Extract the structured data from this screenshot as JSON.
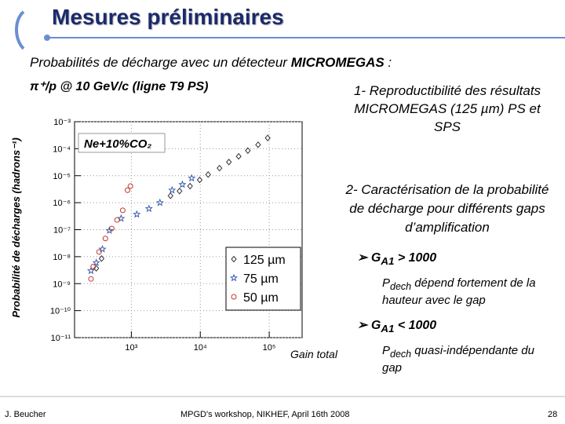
{
  "slide": {
    "title": "Mesures préliminaires",
    "intro": "Probabilités de décharge avec un détecteur",
    "intro_bold": "MICROMEGAS",
    "intro_end": ":",
    "beam": "π⁺/p @ 10 GeV/c (ligne T9 PS)",
    "point1": "1- Reproductibilité des résultats MICROMEGAS (125 µm) PS et SPS",
    "point2": "2- Caractérisation de la probabilité de décharge pour différents gaps d’amplification",
    "case1": {
      "symbol": "G",
      "subscript": "A1",
      "text": "> 1000"
    },
    "case1_note": {
      "symbol": "P",
      "subscript": "dech",
      "text": "dépend fortement de la hauteur avec le gap"
    },
    "case2": {
      "symbol": "G",
      "subscript": "A1",
      "text": "< 1000"
    },
    "case2_note": {
      "symbol": "P",
      "subscript": "dech",
      "text": "quasi-indépendante du gap"
    },
    "author": "J. Beucher",
    "event": "MPGD's workshop, NIKHEF,  April 16th 2008",
    "page": "28"
  },
  "chart_data": {
    "type": "scatter",
    "annotation": "Ne+10%CO₂",
    "x_label": "Gain total",
    "y_label": "Probabilité de décharges (hadrons⁻¹)",
    "xlog": true,
    "ylog": true,
    "grid": true,
    "legend": "lower right",
    "xlim": [
      150,
      300000
    ],
    "ylim": [
      1e-11,
      0.001
    ],
    "xticks": [
      {
        "value": 1000,
        "label": "10³"
      },
      {
        "value": 10000,
        "label": "10⁴"
      },
      {
        "value": 100000,
        "label": "10⁵"
      }
    ],
    "yticks": [
      {
        "value": 0.001,
        "label": "10⁻³"
      },
      {
        "value": 0.0001,
        "label": "10⁻⁴"
      },
      {
        "value": 1e-05,
        "label": "10⁻⁵"
      },
      {
        "value": 1e-06,
        "label": "10⁻⁶"
      },
      {
        "value": 1e-07,
        "label": "10⁻⁷"
      },
      {
        "value": 1e-08,
        "label": "10⁻⁸"
      },
      {
        "value": 1e-09,
        "label": "10⁻⁹"
      },
      {
        "value": 1e-10,
        "label": "10⁻¹⁰"
      },
      {
        "value": 1e-11,
        "label": "10⁻¹¹"
      }
    ],
    "series": [
      {
        "name": "125 µm",
        "color": "#333333",
        "marker": "diamond",
        "x": [
          310,
          370,
          3700,
          5000,
          7100,
          9800,
          13000,
          19000,
          26000,
          36000,
          49000,
          69000,
          95000
        ],
        "values": [
          3.7e-09,
          8.5e-09,
          1.8e-06,
          2.7e-06,
          4.1e-06,
          7e-06,
          1.1e-05,
          1.9e-05,
          3.2e-05,
          5.2e-05,
          8.5e-05,
          0.00014,
          0.00025
        ]
      },
      {
        "name": "75 µm",
        "color": "#3a5fb0",
        "marker": "star",
        "x": [
          260,
          310,
          380,
          480,
          710,
          1200,
          1800,
          2600,
          3900,
          5500,
          7500
        ],
        "values": [
          3e-09,
          6e-09,
          1.9e-08,
          9.3e-08,
          2.6e-07,
          3.7e-07,
          6e-07,
          1e-06,
          2.9e-06,
          4.7e-06,
          8.1e-06
        ]
      },
      {
        "name": "50 µm",
        "color": "#c0392b",
        "marker": "circle",
        "x": [
          260,
          280,
          340,
          420,
          520,
          620,
          750,
          880,
          970
        ],
        "values": [
          1.5e-09,
          4.3e-09,
          1.5e-08,
          4.7e-08,
          1.1e-07,
          2.3e-07,
          5.2e-07,
          2.9e-06,
          4.1e-06
        ]
      }
    ]
  }
}
